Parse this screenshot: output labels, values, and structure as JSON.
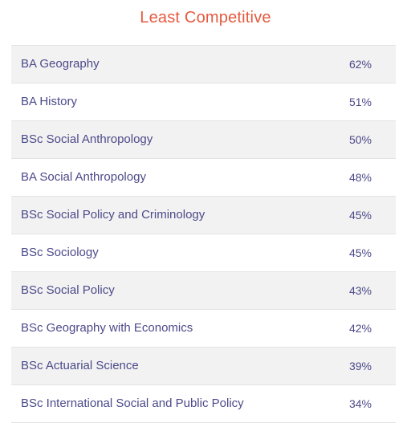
{
  "colors": {
    "title": "#e55a3f",
    "text": "#4b4a8a",
    "row_stripe": "#f2f2f2",
    "row_plain": "#ffffff",
    "border": "#e3e3e3"
  },
  "title": "Least Competitive",
  "rows": [
    {
      "course": "BA Geography",
      "percent": "62%"
    },
    {
      "course": "BA History",
      "percent": "51%"
    },
    {
      "course": "BSc Social Anthropology",
      "percent": "50%"
    },
    {
      "course": "BA Social Anthropology",
      "percent": "48%"
    },
    {
      "course": "BSc Social Policy and Criminology",
      "percent": "45%"
    },
    {
      "course": "BSc Sociology",
      "percent": "45%"
    },
    {
      "course": "BSc Social Policy",
      "percent": "43%"
    },
    {
      "course": "BSc Geography with Economics",
      "percent": "42%"
    },
    {
      "course": "BSc Actuarial Science",
      "percent": "39%"
    },
    {
      "course": "BSc International Social and Public Policy",
      "percent": "34%"
    }
  ]
}
